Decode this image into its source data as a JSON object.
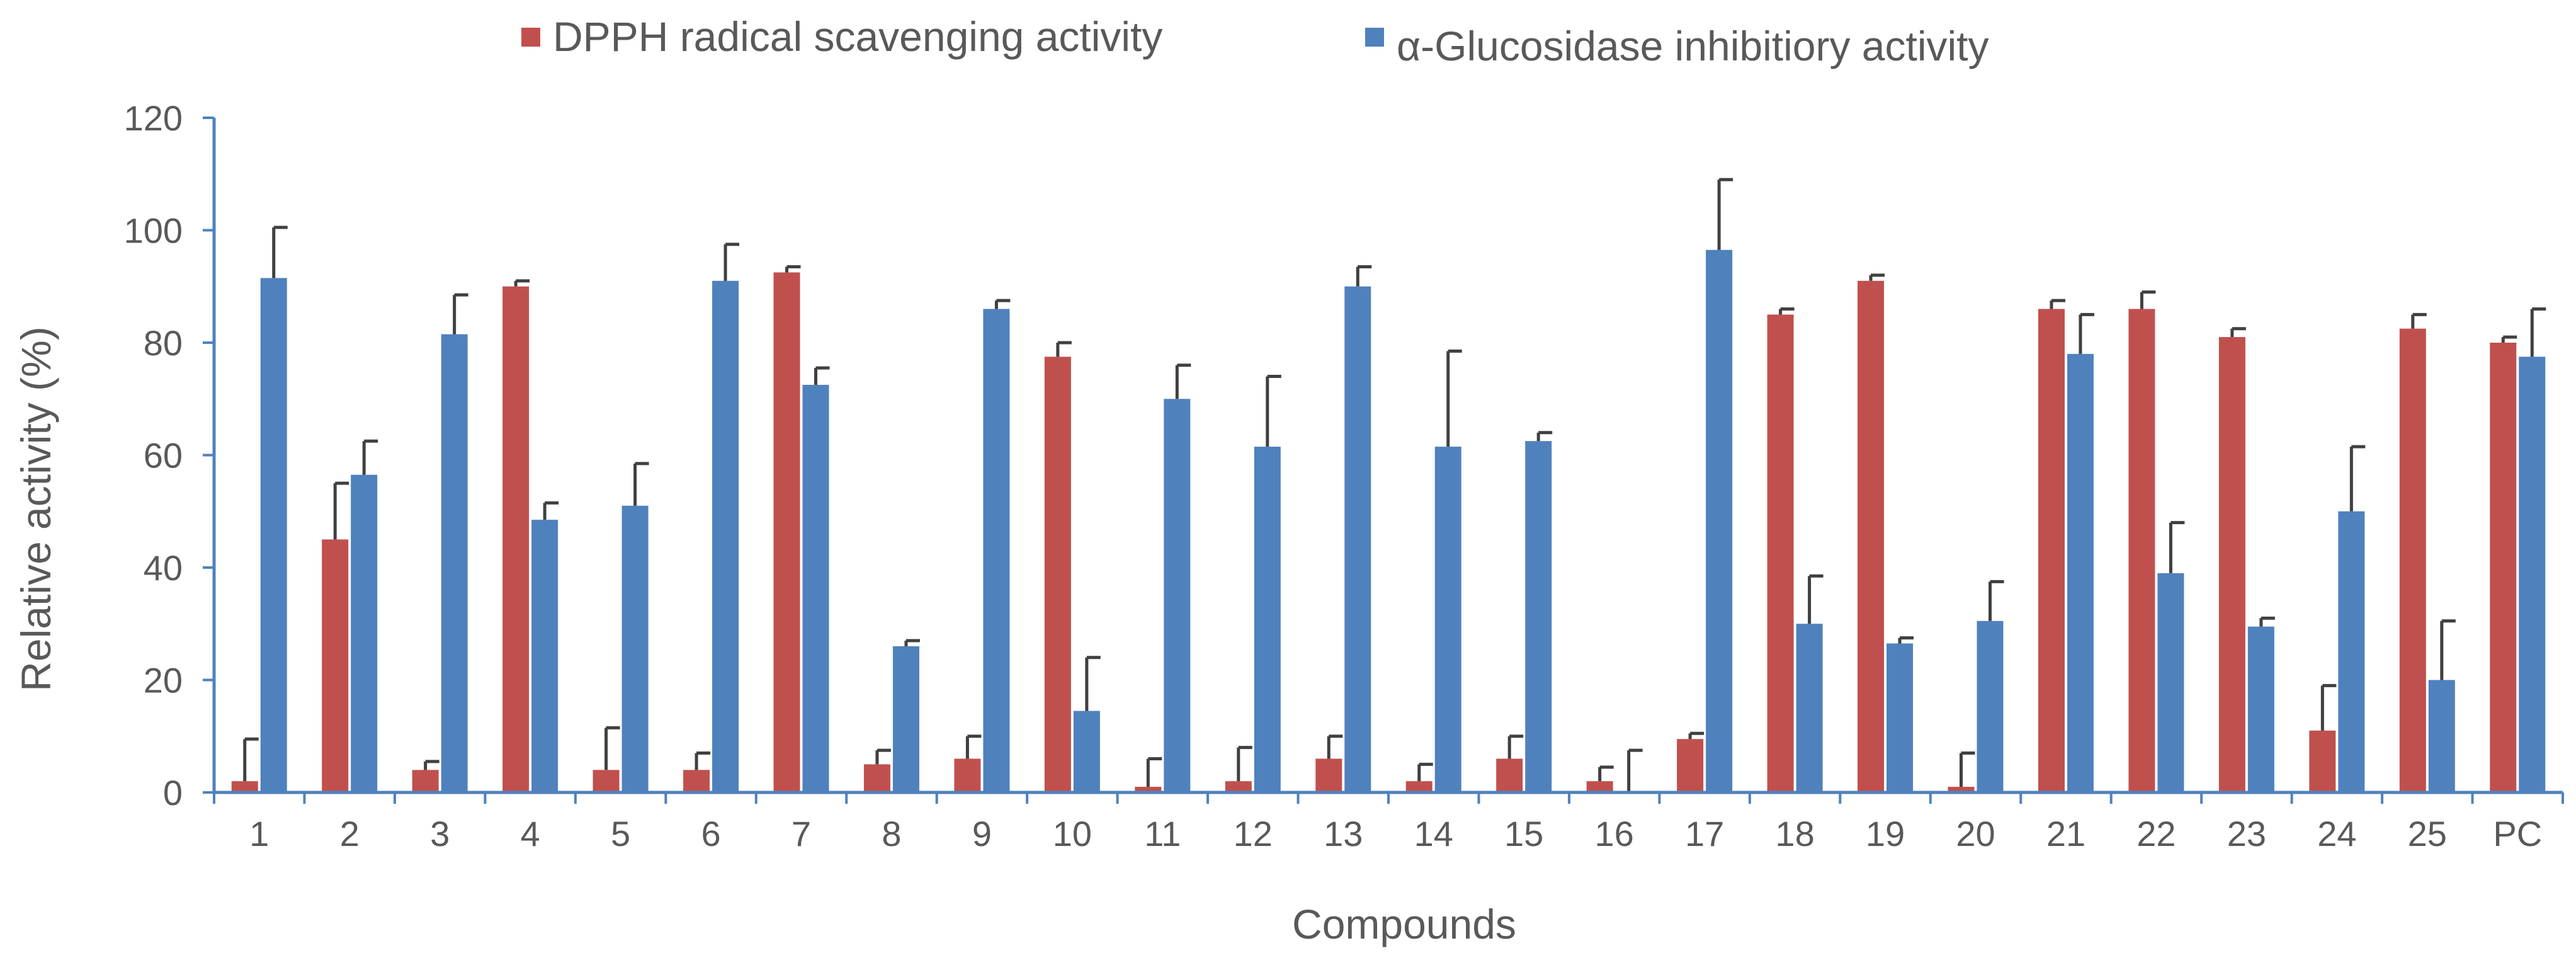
{
  "chart_data": {
    "type": "bar",
    "title": "",
    "xlabel": "Compounds",
    "ylabel": "Relative activity (%)",
    "ylim": [
      0,
      120
    ],
    "yticks": [
      0,
      20,
      40,
      60,
      80,
      100,
      120
    ],
    "grid": false,
    "legend_position": "top",
    "categories": [
      "1",
      "2",
      "3",
      "4",
      "5",
      "6",
      "7",
      "8",
      "9",
      "10",
      "11",
      "12",
      "13",
      "14",
      "15",
      "16",
      "17",
      "18",
      "19",
      "20",
      "21",
      "22",
      "23",
      "24",
      "25",
      "PC"
    ],
    "series": [
      {
        "name": "DPPH radical scavenging activity",
        "color": "#c0504d",
        "values": [
          2,
          45,
          4,
          90,
          4,
          4,
          92.5,
          5,
          6,
          77.5,
          1,
          2,
          6,
          2,
          6,
          2,
          9.5,
          85,
          91,
          1,
          86,
          86,
          81,
          11,
          82.5,
          80
        ],
        "errors": [
          7.5,
          10,
          1.5,
          1,
          7.5,
          3,
          1,
          2.5,
          4,
          2.5,
          5,
          6,
          4,
          3,
          4,
          2.5,
          1,
          1,
          1,
          6,
          1.5,
          3,
          1.5,
          8,
          2.5,
          1
        ]
      },
      {
        "name": "α-Glucosidase inhibitiory activity",
        "color": "#4f81bd",
        "values": [
          91.5,
          56.5,
          81.5,
          48.5,
          51,
          91,
          72.5,
          26,
          86,
          14.5,
          70,
          61.5,
          90,
          61.5,
          62.5,
          0,
          96.5,
          30,
          26.5,
          30.5,
          78,
          39,
          29.5,
          50,
          20,
          77.5
        ],
        "errors": [
          9,
          6,
          7,
          3,
          7.5,
          6.5,
          3,
          1,
          1.5,
          9.5,
          6,
          12.5,
          3.5,
          17,
          1.5,
          7.5,
          12.5,
          8.5,
          1,
          7,
          7,
          9,
          1.5,
          11.5,
          10.5,
          8.5
        ]
      }
    ]
  }
}
